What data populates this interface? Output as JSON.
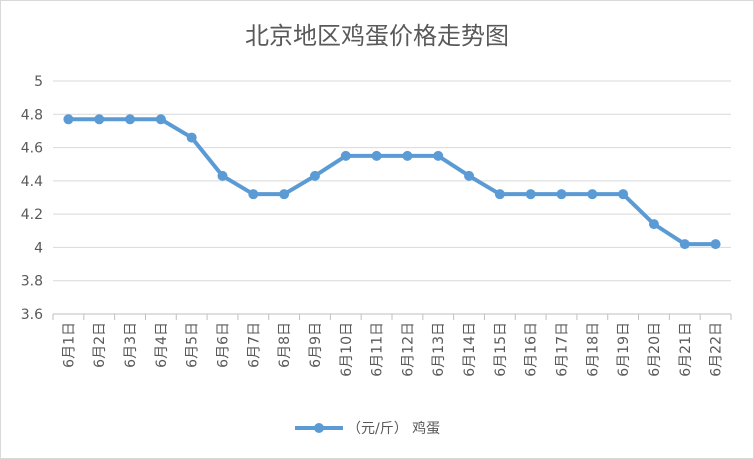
{
  "chart_data": {
    "type": "line",
    "title": "北京地区鸡蛋价格走势图",
    "xlabel": "",
    "ylabel": "",
    "categories": [
      "6月1日",
      "6月2日",
      "6月3日",
      "6月4日",
      "6月5日",
      "6月6日",
      "6月7日",
      "6月8日",
      "6月9日",
      "6月10日",
      "6月11日",
      "6月12日",
      "6月13日",
      "6月14日",
      "6月15日",
      "6月16日",
      "6月17日",
      "6月18日",
      "6月19日",
      "6月20日",
      "6月21日",
      "6月22日"
    ],
    "series": [
      {
        "name": "（元/斤） 鸡蛋",
        "color": "#5b9bd5",
        "values": [
          4.77,
          4.77,
          4.77,
          4.77,
          4.66,
          4.43,
          4.32,
          4.32,
          4.43,
          4.55,
          4.55,
          4.55,
          4.55,
          4.43,
          4.32,
          4.32,
          4.32,
          4.32,
          4.32,
          4.14,
          4.02,
          4.02
        ]
      }
    ],
    "yticks": [
      "3.6",
      "3.8",
      "4",
      "4.2",
      "4.4",
      "4.6",
      "4.8",
      "5"
    ],
    "ylim": [
      3.6,
      5
    ],
    "grid": true,
    "legend": "bottom"
  }
}
